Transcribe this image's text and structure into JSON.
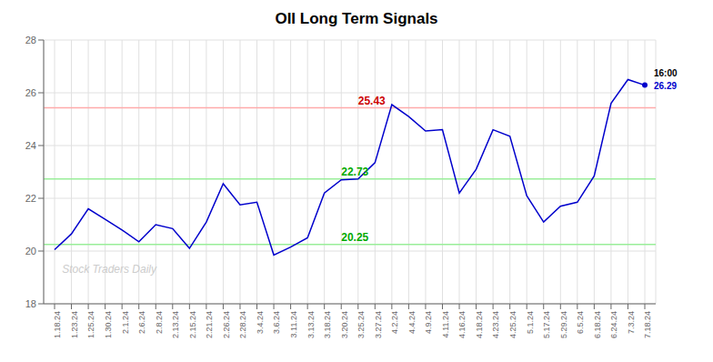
{
  "chart_data": {
    "type": "line",
    "title": "OII Long Term Signals",
    "categories": [
      "1.18.24",
      "1.23.24",
      "1.25.24",
      "1.30.24",
      "2.1.24",
      "2.6.24",
      "2.8.24",
      "2.13.24",
      "2.15.24",
      "2.21.24",
      "2.26.24",
      "2.28.24",
      "3.4.24",
      "3.6.24",
      "3.11.24",
      "3.13.24",
      "3.18.24",
      "3.20.24",
      "3.25.24",
      "3.27.24",
      "4.2.24",
      "4.4.24",
      "4.9.24",
      "4.11.24",
      "4.16.24",
      "4.18.24",
      "4.23.24",
      "4.25.24",
      "5.1.24",
      "5.17.24",
      "5.29.24",
      "6.5.24",
      "6.18.24",
      "6.24.24",
      "7.3.24",
      "7.18.24"
    ],
    "values": [
      20.05,
      20.65,
      21.6,
      21.2,
      20.8,
      20.35,
      21.0,
      20.85,
      20.1,
      21.1,
      22.55,
      21.75,
      21.85,
      19.85,
      20.15,
      20.5,
      22.2,
      22.7,
      22.73,
      23.35,
      25.55,
      25.1,
      24.55,
      24.6,
      22.2,
      23.1,
      24.6,
      24.35,
      22.1,
      21.1,
      21.7,
      21.85,
      22.85,
      25.6,
      26.5,
      26.29
    ],
    "color": "#0000cc",
    "marker": "last",
    "ylim": [
      18,
      28
    ],
    "yticks": [
      18,
      20,
      22,
      24,
      26,
      28
    ],
    "grid": true,
    "hlines": [
      {
        "value": 25.43,
        "color": "#ffaaaa",
        "label": "25.43",
        "label_color": "#cc0000"
      },
      {
        "value": 22.73,
        "color": "#99ee99",
        "label": "22.73",
        "label_color": "#00aa00"
      },
      {
        "value": 20.25,
        "color": "#99ee99",
        "label": "20.25",
        "label_color": "#00aa00"
      }
    ],
    "annotations": [
      {
        "text": "16:00",
        "color": "#000000"
      },
      {
        "text": "26.29",
        "color": "#0000cc"
      }
    ],
    "watermark": "Stock Traders Daily"
  }
}
